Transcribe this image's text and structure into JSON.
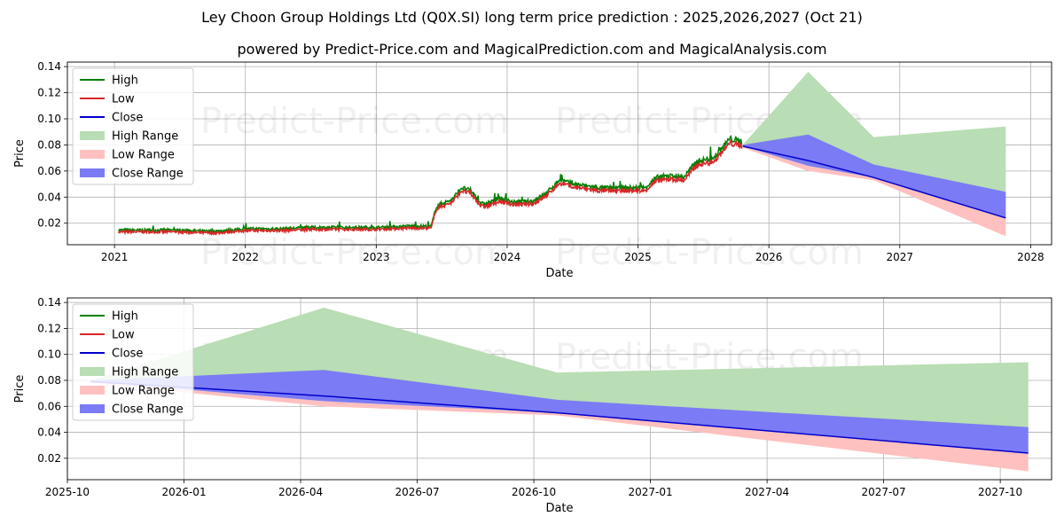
{
  "header": {
    "title": "Ley Choon Group Holdings Ltd (Q0X.SI) long term price prediction : 2025,2026,2027 (Oct 21)",
    "subtitle": "powered by Predict-Price.com and MagicalPrediction.com and MagicalAnalysis.com"
  },
  "watermark": "Predict-Price.com",
  "colors": {
    "high": "#008000",
    "low": "#d62728",
    "close": "#0000cc",
    "high_range": "#b9ddb4",
    "low_range": "#ffc0c0",
    "close_range": "#7b7bf5",
    "grid": "#b0b0b0"
  },
  "legend": [
    "High",
    "Low",
    "Close",
    "High Range",
    "Low Range",
    "Close Range"
  ],
  "chart_data": [
    {
      "type": "line",
      "xlabel": "Date",
      "ylabel": "Price",
      "xlim": [
        2020.64,
        2028.16
      ],
      "ylim": [
        0.0035,
        0.1435
      ],
      "xticks": [
        2021,
        2022,
        2023,
        2024,
        2025,
        2026,
        2027,
        2028
      ],
      "xtick_labels": [
        "2021",
        "2022",
        "2023",
        "2024",
        "2025",
        "2026",
        "2027",
        "2028"
      ],
      "yticks": [
        0.02,
        0.04,
        0.06,
        0.08,
        0.1,
        0.12,
        0.14
      ],
      "ytick_labels": [
        "0.02",
        "0.04",
        "0.06",
        "0.08",
        "0.10",
        "0.12",
        "0.14"
      ],
      "grid": true,
      "legend_position": "top-left",
      "history": {
        "x": [
          2021.03,
          2021.25,
          2021.5,
          2021.75,
          2022.0,
          2022.25,
          2022.5,
          2022.75,
          2023.0,
          2023.25,
          2023.42,
          2023.46,
          2023.5,
          2023.58,
          2023.65,
          2023.72,
          2023.8,
          2023.85,
          2023.95,
          2024.05,
          2024.2,
          2024.3,
          2024.4,
          2024.5,
          2024.7,
          2024.9,
          2025.05,
          2025.15,
          2025.25,
          2025.35,
          2025.45,
          2025.55,
          2025.6,
          2025.7,
          2025.8
        ],
        "close": [
          0.014,
          0.014,
          0.014,
          0.013,
          0.015,
          0.015,
          0.016,
          0.016,
          0.016,
          0.017,
          0.017,
          0.032,
          0.034,
          0.037,
          0.046,
          0.044,
          0.034,
          0.034,
          0.038,
          0.035,
          0.036,
          0.042,
          0.052,
          0.049,
          0.046,
          0.046,
          0.046,
          0.054,
          0.055,
          0.054,
          0.066,
          0.068,
          0.071,
          0.083,
          0.081
        ]
      },
      "forecast": {
        "x": [
          2025.8,
          2026.3,
          2026.8,
          2027.81
        ],
        "high": [
          0.08,
          0.136,
          0.086,
          0.094
        ],
        "low": [
          0.078,
          0.06,
          0.053,
          0.01
        ],
        "close_upper": [
          0.08,
          0.088,
          0.065,
          0.044
        ],
        "close_lower": [
          0.079,
          0.064,
          0.055,
          0.024
        ],
        "close": [
          0.079,
          0.068,
          0.055,
          0.024
        ]
      }
    },
    {
      "type": "area",
      "xlabel": "Date",
      "ylabel": "Price",
      "xlim": [
        2025.75,
        2027.86
      ],
      "ylim": [
        0.0035,
        0.1435
      ],
      "xticks": [
        2025.75,
        2026.0,
        2026.25,
        2026.5,
        2026.75,
        2027.0,
        2027.25,
        2027.5,
        2027.75
      ],
      "xtick_labels": [
        "2025-10",
        "2026-01",
        "2026-04",
        "2026-07",
        "2026-10",
        "2027-01",
        "2027-04",
        "2027-07",
        "2027-10"
      ],
      "yticks": [
        0.02,
        0.04,
        0.06,
        0.08,
        0.1,
        0.12,
        0.14
      ],
      "ytick_labels": [
        "0.02",
        "0.04",
        "0.06",
        "0.08",
        "0.10",
        "0.12",
        "0.14"
      ],
      "grid": true,
      "legend_position": "top-left",
      "forecast": {
        "x": [
          2025.8,
          2026.3,
          2026.8,
          2027.81
        ],
        "high": [
          0.08,
          0.136,
          0.086,
          0.094
        ],
        "low": [
          0.078,
          0.06,
          0.053,
          0.01
        ],
        "close_upper": [
          0.08,
          0.088,
          0.065,
          0.044
        ],
        "close_lower": [
          0.079,
          0.064,
          0.055,
          0.024
        ],
        "close": [
          0.079,
          0.068,
          0.055,
          0.024
        ]
      }
    }
  ]
}
